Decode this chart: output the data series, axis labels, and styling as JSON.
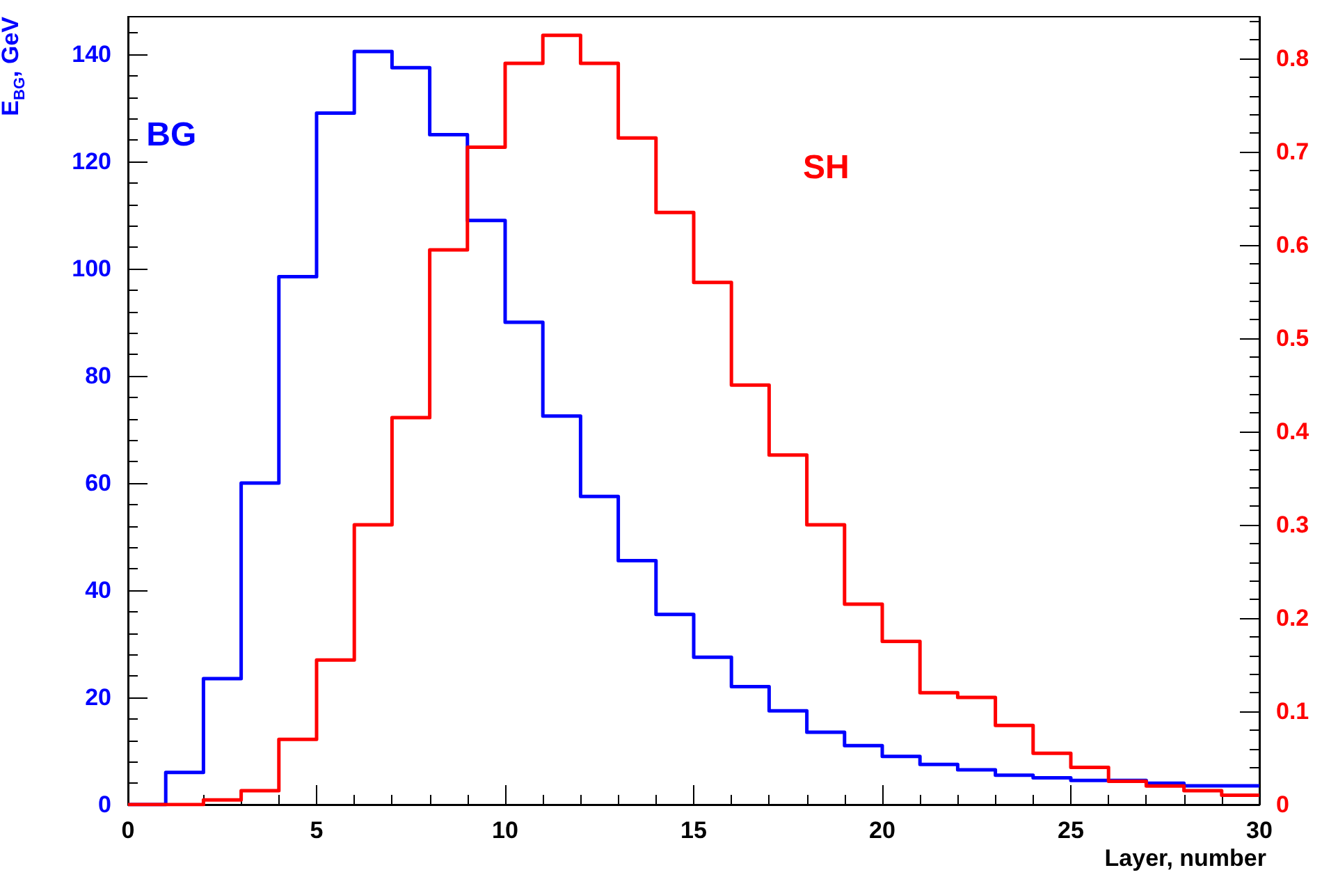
{
  "chart_data": {
    "type": "histogram",
    "xlabel": "Layer, number",
    "ylabel": "E$_{BG}$, GeV",
    "bins": [
      0,
      1,
      2,
      3,
      4,
      5,
      6,
      7,
      8,
      9,
      10,
      11,
      12,
      13,
      14,
      15,
      16,
      17,
      18,
      19,
      20,
      21,
      22,
      23,
      24,
      25,
      26,
      27,
      28,
      29,
      30
    ],
    "series": [
      {
        "name": "BG",
        "color": "#0000ff",
        "values": [
          0,
          6,
          23.5,
          60,
          98.5,
          129,
          140.5,
          137.5,
          125,
          109,
          90,
          72.5,
          57.5,
          45.5,
          35.5,
          27.5,
          22,
          17.5,
          13.5,
          11,
          9,
          7.5,
          6.5,
          5.5,
          5,
          4.5,
          4.5,
          4,
          3.5,
          3.5
        ]
      },
      {
        "name": "SH",
        "color": "#ff0000",
        "axis": "y2",
        "values": [
          0,
          0,
          0.005,
          0.015,
          0.07,
          0.155,
          0.3,
          0.415,
          0.595,
          0.705,
          0.795,
          0.825,
          0.795,
          0.715,
          0.635,
          0.56,
          0.45,
          0.375,
          0.3,
          0.215,
          0.175,
          0.12,
          0.115,
          0.085,
          0.055,
          0.04,
          0.025,
          0.02,
          0.015,
          0.01
        ]
      }
    ],
    "xlim": [
      0,
      30
    ],
    "xticks": [
      0,
      5,
      10,
      15,
      20,
      25,
      30
    ],
    "ylim": [
      0,
      147
    ],
    "yticks": [
      0,
      20,
      40,
      60,
      80,
      100,
      120,
      140
    ],
    "y2lim": [
      0,
      0.845
    ],
    "y2ticks": [
      0,
      0.1,
      0.2,
      0.3,
      0.4,
      0.5,
      0.6,
      0.7,
      0.8
    ],
    "grid": false,
    "legend": false
  }
}
